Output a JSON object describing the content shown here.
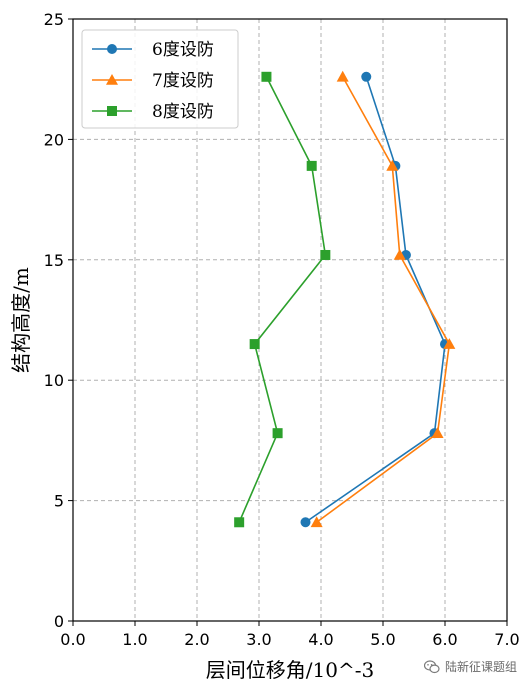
{
  "chart_data": {
    "type": "line",
    "xlabel": "层间位移角/10^-3",
    "ylabel": "结构高度/m",
    "xlim": [
      0,
      7
    ],
    "ylim": [
      0,
      25
    ],
    "xticks": [
      0,
      1,
      2,
      3,
      4,
      5,
      6,
      7
    ],
    "xtick_labels": [
      "0.0",
      "1.0",
      "2.0",
      "3.0",
      "4.0",
      "5.0",
      "6.0",
      "7.0"
    ],
    "yticks": [
      0,
      5,
      10,
      15,
      20,
      25
    ],
    "ytick_labels": [
      "0",
      "5",
      "10",
      "15",
      "20",
      "25"
    ],
    "grid": true,
    "legend_position": "top-left",
    "series": [
      {
        "name": "6度设防",
        "color": "#1f77b4",
        "marker": "circle",
        "points": [
          [
            3.75,
            4.1
          ],
          [
            5.83,
            7.8
          ],
          [
            6.0,
            11.5
          ],
          [
            5.37,
            15.2
          ],
          [
            5.2,
            18.9
          ],
          [
            4.73,
            22.6
          ]
        ]
      },
      {
        "name": "7度设防",
        "color": "#ff7f0e",
        "marker": "triangle",
        "points": [
          [
            3.93,
            4.1
          ],
          [
            5.88,
            7.8
          ],
          [
            6.07,
            11.5
          ],
          [
            5.27,
            15.2
          ],
          [
            5.15,
            18.9
          ],
          [
            4.35,
            22.6
          ]
        ]
      },
      {
        "name": "8度设防",
        "color": "#2ca02c",
        "marker": "square",
        "points": [
          [
            2.68,
            4.1
          ],
          [
            3.3,
            7.8
          ],
          [
            2.93,
            11.5
          ],
          [
            4.07,
            15.2
          ],
          [
            3.85,
            18.9
          ],
          [
            3.12,
            22.6
          ]
        ]
      }
    ]
  },
  "watermark": {
    "text": "陆新征课题组",
    "icon": "wechat-icon"
  }
}
